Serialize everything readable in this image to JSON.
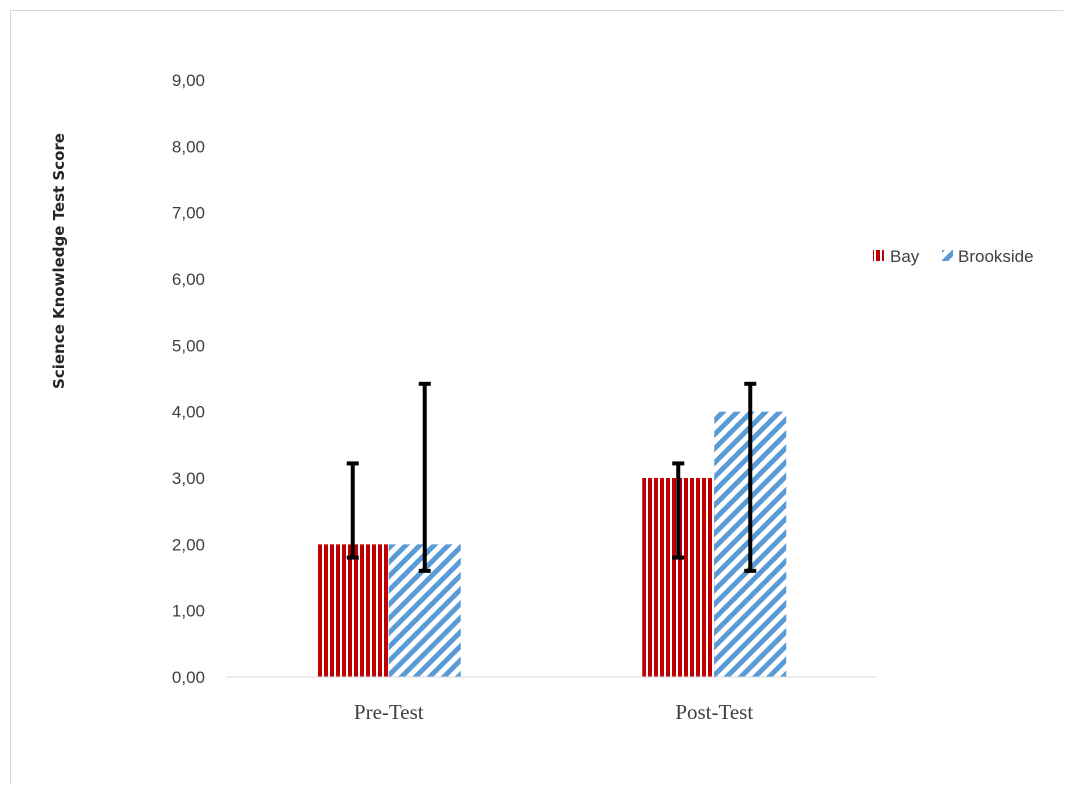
{
  "chart_data": {
    "type": "bar",
    "title": "",
    "xlabel": "",
    "ylabel": "Science Knowledge Test Score",
    "categories": [
      "Pre-Test",
      "Post-Test"
    ],
    "series": [
      {
        "name": "Bay",
        "values": [
          2.0,
          3.0
        ],
        "err_low": [
          1.8,
          1.8
        ],
        "err_high": [
          3.22,
          3.22
        ],
        "color": "#c00000",
        "pattern": "vertical-stripes"
      },
      {
        "name": "Brookside",
        "values": [
          2.0,
          4.0
        ],
        "err_low": [
          1.6,
          1.6
        ],
        "err_high": [
          4.42,
          4.42
        ],
        "color": "#5b9bd5",
        "pattern": "diagonal-stripes"
      }
    ],
    "ylim": [
      0,
      9
    ],
    "yticks": [
      "0,00",
      "1,00",
      "2,00",
      "3,00",
      "4,00",
      "5,00",
      "6,00",
      "7,00",
      "8,00",
      "9,00"
    ],
    "grid": false,
    "legend_position": "right"
  }
}
